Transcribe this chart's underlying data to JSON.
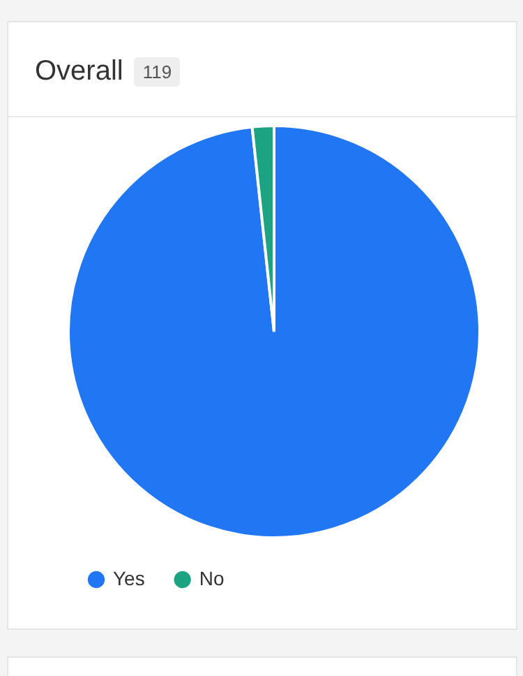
{
  "chart_data": {
    "type": "pie",
    "title": "Overall",
    "subtitle": "119",
    "categories": [
      "Yes",
      "No"
    ],
    "values": [
      98.3,
      1.7
    ],
    "colors": [
      "#2176f3",
      "#1ca382"
    ],
    "legend": "bottom left"
  }
}
